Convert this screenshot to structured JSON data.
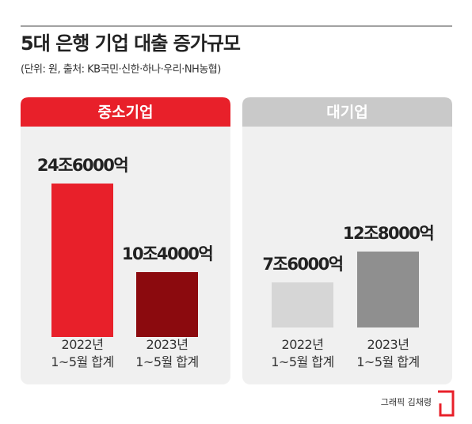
{
  "title": "5대 은행 기업 대출 증가규모",
  "subtitle": "(단위: 원, 출처: KB국민·신한·하나·우리·NH농협)",
  "credit": "그래픽 김채령",
  "chart_data": [
    {
      "type": "bar",
      "title": "중소기업",
      "categories": [
        "2022년\n1~5월 합계",
        "2023년\n1~5월 합계"
      ],
      "values": [
        246000,
        104000
      ],
      "value_labels": [
        "24조6000억",
        "10조4000억"
      ],
      "colors": [
        "#e8202a",
        "#8b0a0e"
      ]
    },
    {
      "type": "bar",
      "title": "대기업",
      "categories": [
        "2022년\n1~5월 합계",
        "2023년\n1~5월 합계"
      ],
      "values": [
        76000,
        128000
      ],
      "value_labels": [
        "7조6000억",
        "12조8000억"
      ],
      "colors": [
        "#d6d6d6",
        "#8f8f8f"
      ]
    }
  ]
}
